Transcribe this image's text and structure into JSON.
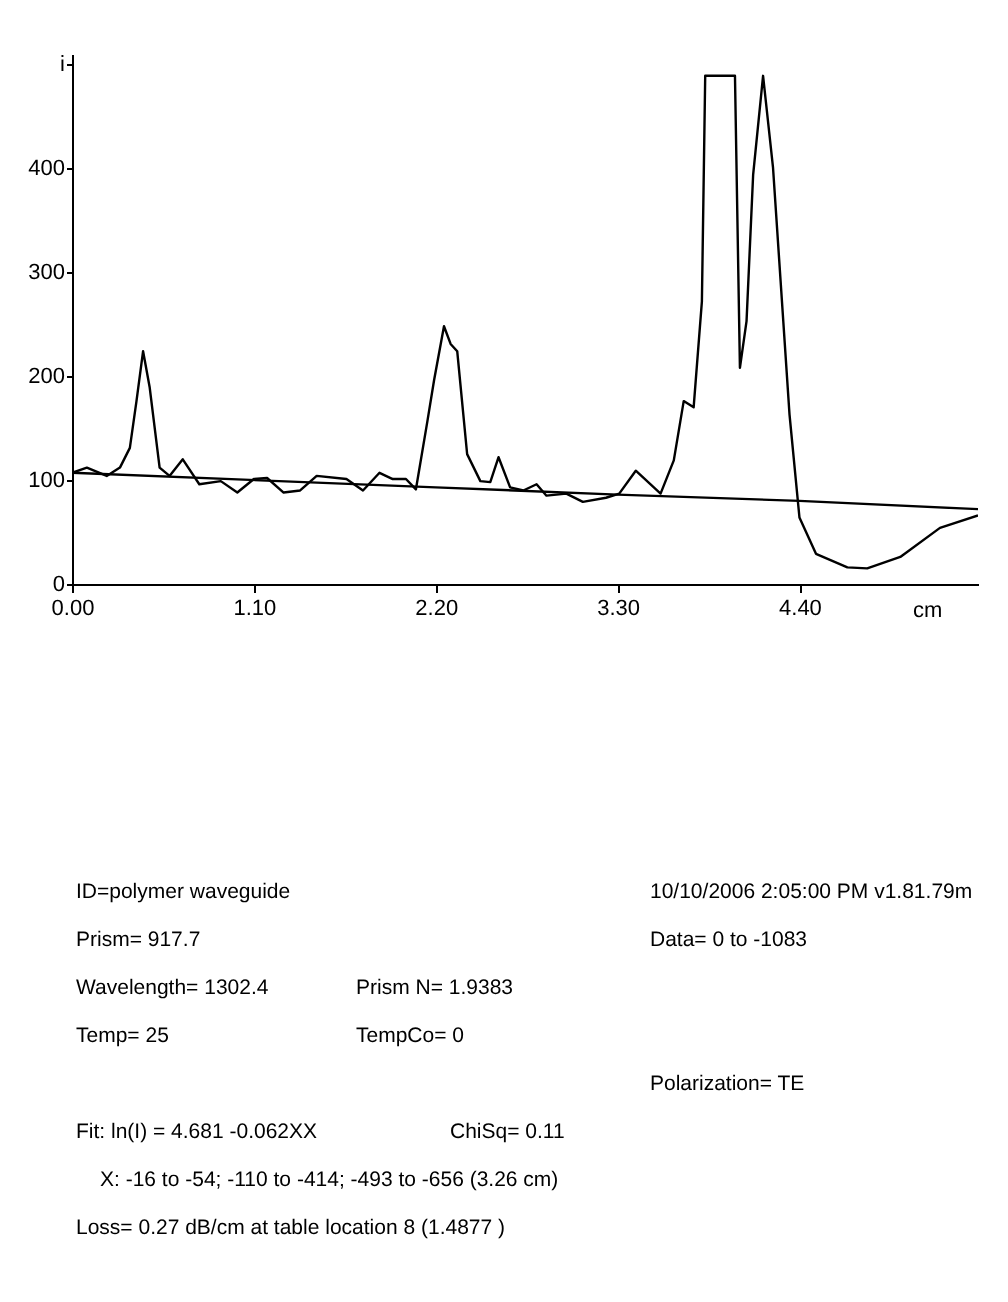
{
  "chart_data": {
    "type": "line",
    "xlabel": "cm",
    "xlim": [
      0,
      5.48
    ],
    "ylim": [
      0,
      510
    ],
    "xticks": [
      {
        "value": 0,
        "label": "0.00"
      },
      {
        "value": 1.1,
        "label": "1.10"
      },
      {
        "value": 2.2,
        "label": "2.20"
      },
      {
        "value": 3.3,
        "label": "3.30"
      },
      {
        "value": 4.4,
        "label": "4.40"
      }
    ],
    "yticks": [
      0,
      100,
      200,
      300,
      400,
      {
        "value": 500,
        "label": "i"
      }
    ],
    "grid": false,
    "series": [
      {
        "color": "#000000",
        "x": [
          0,
          0.09,
          0.21,
          0.29,
          0.35,
          0.39,
          0.43,
          0.47,
          0.53,
          0.59,
          0.67,
          0.77,
          0.9,
          1.0,
          1.1,
          1.18,
          1.28,
          1.38,
          1.48,
          1.66,
          1.76,
          1.86,
          1.94,
          2.02,
          2.08,
          2.15,
          2.19,
          2.25,
          2.29,
          2.33,
          2.39,
          2.47,
          2.53,
          2.58,
          2.65,
          2.73,
          2.81,
          2.87,
          2.99,
          3.09,
          3.23,
          3.31,
          3.41,
          3.56,
          3.64,
          3.7,
          3.76,
          3.81,
          3.83,
          4.01,
          4.04,
          4.08,
          4.12,
          4.18,
          4.24,
          4.34,
          4.4,
          4.5,
          4.69,
          4.81,
          5.01,
          5.25,
          5.48
        ],
        "values": [
          107,
          112,
          104,
          112,
          131,
          176,
          224,
          189,
          112,
          104,
          120,
          96,
          99,
          88,
          101,
          102,
          88,
          90,
          104,
          101,
          90,
          107,
          101,
          101,
          91,
          157,
          196,
          248,
          231,
          224,
          125,
          99,
          98,
          122,
          93,
          90,
          96,
          85,
          87,
          79,
          83,
          87,
          109,
          87,
          119,
          176,
          170,
          272,
          489,
          489,
          208,
          253,
          394,
          489,
          401,
          163,
          64,
          29,
          16,
          15,
          26,
          54,
          66
        ]
      },
      {
        "color": "#000000",
        "x": [
          0,
          2.2,
          3.3,
          4.4,
          5.48
        ],
        "values": [
          107,
          93,
          86,
          80,
          72
        ]
      }
    ],
    "annotations": [
      "ID=polymer waveguide",
      "10/10/2006 2:05:00 PM   v1.81.79m",
      "Prism= 917.7",
      "Data= 0 to -1083",
      "Wavelength= 1302.4",
      "Prism N= 1.9383",
      "Temp= 25",
      "TempCo= 0",
      "Polarization= TE",
      "Fit: ln(I) = 4.681 -0.062XX",
      "ChiSq= 0.11",
      "X: -16 to -54; -110 to -414; -493 to -656 (3.26 cm)",
      "Loss= 0.27 dB/cm at table location 8 (1.4877 )"
    ]
  }
}
